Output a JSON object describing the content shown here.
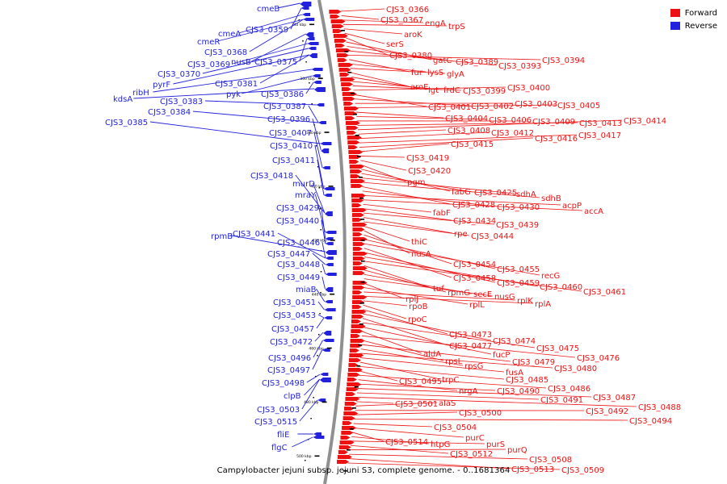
{
  "legend": [
    {
      "label": "Forward",
      "color": "#ee1111"
    },
    {
      "label": "Reverse",
      "color": "#2222dd"
    }
  ],
  "caption": "Campylobacter jejuni subsp. jejuni S3, complete genome. - 0..1681364",
  "colors": {
    "forward": "#ee1111",
    "reverse": "#2222dd",
    "backbone": "#909090",
    "tick": "#000000"
  },
  "ticks": [
    {
      "label": "340 kbp",
      "kbp": 340
    },
    {
      "label": "360 kbp",
      "kbp": 360
    },
    {
      "label": "380 kbp",
      "kbp": 380
    },
    {
      "label": "400 kbp",
      "kbp": 400
    },
    {
      "label": "420 kbp",
      "kbp": 420
    },
    {
      "label": "440 kbp",
      "kbp": 440
    },
    {
      "label": "460 kbp",
      "kbp": 460
    },
    {
      "label": "480 kbp",
      "kbp": 480
    },
    {
      "label": "500 kbp",
      "kbp": 500
    }
  ],
  "reverse_features": [
    {
      "label": "cmeB"
    },
    {
      "label": "CJS3_0359"
    },
    {
      "label": "cmeA"
    },
    {
      "label": "cmeR"
    },
    {
      "label": "CJS3_0368"
    },
    {
      "label": "nusB"
    },
    {
      "label": "CJS3_0375"
    },
    {
      "label": "CJS3_0369"
    },
    {
      "label": "CJS3_0370"
    },
    {
      "label": "pyrF"
    },
    {
      "label": "CJS3_0381"
    },
    {
      "label": "ribH"
    },
    {
      "label": "pyk"
    },
    {
      "label": "CJS3_0386"
    },
    {
      "label": "kdsA"
    },
    {
      "label": "CJS3_0383"
    },
    {
      "label": "CJS3_0387"
    },
    {
      "label": "CJS3_0384"
    },
    {
      "label": "CJS3_0385"
    },
    {
      "label": "CJS3_0396"
    },
    {
      "label": "CJS3_0407"
    },
    {
      "label": "CJS3_0410"
    },
    {
      "label": "CJS3_0411"
    },
    {
      "label": "CJS3_0418"
    },
    {
      "label": "murD"
    },
    {
      "label": "mraY"
    },
    {
      "label": "CJS3_0429"
    },
    {
      "label": "CJS3_0440"
    },
    {
      "label": "rpmB"
    },
    {
      "label": "CJS3_0441"
    },
    {
      "label": "CJS3_0446"
    },
    {
      "label": "CJS3_0447"
    },
    {
      "label": "CJS3_0448"
    },
    {
      "label": "CJS3_0449"
    },
    {
      "label": "miaB"
    },
    {
      "label": "CJS3_0451"
    },
    {
      "label": "CJS3_0453"
    },
    {
      "label": "CJS3_0457"
    },
    {
      "label": "CJS3_0472"
    },
    {
      "label": "CJS3_0496"
    },
    {
      "label": "CJS3_0497"
    },
    {
      "label": "CJS3_0498"
    },
    {
      "label": "clpB"
    },
    {
      "label": "CJS3_0503"
    },
    {
      "label": "CJS3_0515"
    },
    {
      "label": "fliE"
    },
    {
      "label": "flgC"
    }
  ],
  "forward_features": [
    {
      "label": "CJS3_0366"
    },
    {
      "label": "CJS3_0367"
    },
    {
      "label": "engA"
    },
    {
      "label": "trpS"
    },
    {
      "label": "aroK"
    },
    {
      "label": "serS"
    },
    {
      "label": "CJS3_0380"
    },
    {
      "label": "gatC"
    },
    {
      "label": "CJS3_0389"
    },
    {
      "label": "CJS3_0393"
    },
    {
      "label": "CJS3_0394"
    },
    {
      "label": "fur"
    },
    {
      "label": "lysS"
    },
    {
      "label": "glyA"
    },
    {
      "label": "aroE"
    },
    {
      "label": "lgt"
    },
    {
      "label": "frdC"
    },
    {
      "label": "CJS3_0399"
    },
    {
      "label": "CJS3_0400"
    },
    {
      "label": "CJS3_0401"
    },
    {
      "label": "CJS3_0402"
    },
    {
      "label": "CJS3_0403"
    },
    {
      "label": "CJS3_0405"
    },
    {
      "label": "CJS3_0404"
    },
    {
      "label": "CJS3_0406"
    },
    {
      "label": "CJS3_0409"
    },
    {
      "label": "CJS3_0413"
    },
    {
      "label": "CJS3_0414"
    },
    {
      "label": "CJS3_0408"
    },
    {
      "label": "CJS3_0412"
    },
    {
      "label": "CJS3_0417"
    },
    {
      "label": "CJS3_0416"
    },
    {
      "label": "CJS3_0415"
    },
    {
      "label": "CJS3_0419"
    },
    {
      "label": "CJS3_0420"
    },
    {
      "label": "pgm"
    },
    {
      "label": "fabG"
    },
    {
      "label": "CJS3_0425"
    },
    {
      "label": "sdhA"
    },
    {
      "label": "sdhB"
    },
    {
      "label": "CJS3_0428"
    },
    {
      "label": "CJS3_0430"
    },
    {
      "label": "acpP"
    },
    {
      "label": "accA"
    },
    {
      "label": "fabF"
    },
    {
      "label": "CJS3_0434"
    },
    {
      "label": "CJS3_0439"
    },
    {
      "label": "rpe"
    },
    {
      "label": "CJS3_0444"
    },
    {
      "label": "thiC"
    },
    {
      "label": "nusA"
    },
    {
      "label": "CJS3_0454"
    },
    {
      "label": "CJS3_0455"
    },
    {
      "label": "recG"
    },
    {
      "label": "CJS3_0458"
    },
    {
      "label": "CJS3_0459"
    },
    {
      "label": "CJS3_0460"
    },
    {
      "label": "CJS3_0461"
    },
    {
      "label": "tuf"
    },
    {
      "label": "rpmG"
    },
    {
      "label": "secE"
    },
    {
      "label": "nusG"
    },
    {
      "label": "rplJ"
    },
    {
      "label": "rplL"
    },
    {
      "label": "rplK"
    },
    {
      "label": "rplA"
    },
    {
      "label": "rpoB"
    },
    {
      "label": "rpoC"
    },
    {
      "label": "CJS3_0473"
    },
    {
      "label": "CJS3_0474"
    },
    {
      "label": "CJS3_0477"
    },
    {
      "label": "CJS3_0475"
    },
    {
      "label": "fucP"
    },
    {
      "label": "aldA"
    },
    {
      "label": "CJS3_0476"
    },
    {
      "label": "rpsL"
    },
    {
      "label": "CJS3_0479"
    },
    {
      "label": "rpsG"
    },
    {
      "label": "CJS3_0480"
    },
    {
      "label": "fusA"
    },
    {
      "label": "trpC"
    },
    {
      "label": "CJS3_0485"
    },
    {
      "label": "CJS3_0495"
    },
    {
      "label": "CJS3_0486"
    },
    {
      "label": "nrgA"
    },
    {
      "label": "CJS3_0490"
    },
    {
      "label": "CJS3_0487"
    },
    {
      "label": "CJS3_0491"
    },
    {
      "label": "CJS3_0488"
    },
    {
      "label": "CJS3_0501"
    },
    {
      "label": "alaS"
    },
    {
      "label": "CJS3_0492"
    },
    {
      "label": "CJS3_0500"
    },
    {
      "label": "CJS3_0494"
    },
    {
      "label": "CJS3_0504"
    },
    {
      "label": "purC"
    },
    {
      "label": "CJS3_0514"
    },
    {
      "label": "htpG"
    },
    {
      "label": "purS"
    },
    {
      "label": "CJS3_0512"
    },
    {
      "label": "purQ"
    },
    {
      "label": "CJS3_0508"
    },
    {
      "label": "CJS3_0513"
    },
    {
      "label": "CJS3_0509"
    }
  ]
}
